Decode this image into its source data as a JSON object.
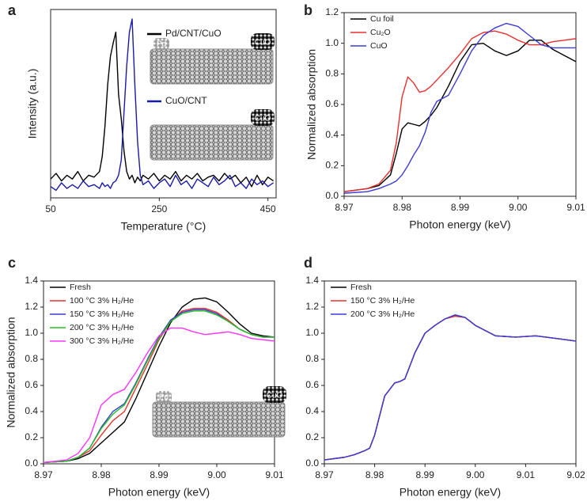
{
  "chart_data": [
    {
      "type": "line",
      "panel": "a",
      "xlabel": "Temperature (°C)",
      "ylabel": "Intensity (a.u.)",
      "x": [
        50,
        60,
        70,
        80,
        90,
        100,
        110,
        120,
        130,
        140,
        145,
        150,
        155,
        160,
        165,
        170,
        175,
        180,
        185,
        190,
        195,
        200,
        205,
        210,
        215,
        220,
        230,
        240,
        250,
        260,
        270,
        280,
        290,
        300,
        310,
        320,
        330,
        340,
        350,
        360,
        370,
        380,
        390,
        400,
        410,
        420,
        430,
        440,
        450,
        460
      ],
      "series": [
        {
          "name": "Pd/CNT/CuO",
          "color": "#000000",
          "values": [
            0.1,
            0.13,
            0.09,
            0.12,
            0.1,
            0.14,
            0.09,
            0.12,
            0.11,
            0.14,
            0.22,
            0.38,
            0.6,
            0.75,
            0.82,
            0.88,
            0.55,
            0.42,
            0.25,
            0.14,
            0.1,
            0.12,
            0.08,
            0.11,
            0.09,
            0.12,
            0.1,
            0.13,
            0.09,
            0.12,
            0.1,
            0.14,
            0.09,
            0.12,
            0.1,
            0.13,
            0.09,
            0.11,
            0.12,
            0.09,
            0.13,
            0.1,
            0.12,
            0.08,
            0.11,
            0.06,
            0.12,
            0.07,
            0.11,
            0.09
          ]
        },
        {
          "name": "CuO/CNT",
          "color": "#1a1aa8",
          "values": [
            0.06,
            0.04,
            0.08,
            0.05,
            0.07,
            0.05,
            0.09,
            0.06,
            0.07,
            0.05,
            0.08,
            0.06,
            0.07,
            0.05,
            0.08,
            0.09,
            0.12,
            0.2,
            0.45,
            0.7,
            0.88,
            0.95,
            0.6,
            0.3,
            0.12,
            0.07,
            0.09,
            0.05,
            0.08,
            0.1,
            0.06,
            0.12,
            0.07,
            0.09,
            0.05,
            0.1,
            0.08,
            0.06,
            0.11,
            0.07,
            0.09,
            0.12,
            0.06,
            0.08,
            0.05,
            0.1,
            0.07,
            0.09,
            0.06,
            0.08
          ]
        }
      ],
      "xlim": [
        50,
        465
      ],
      "ylim": [
        0,
        1
      ],
      "xticks": [
        50,
        250,
        450
      ],
      "legend": "center right",
      "annotations": [
        "Pd",
        "CuO",
        "CuO"
      ]
    },
    {
      "type": "line",
      "panel": "b",
      "xlabel": "Photon energy (keV)",
      "ylabel": "Normalized absorption",
      "x": [
        8.97,
        8.974,
        8.976,
        8.978,
        8.979,
        8.98,
        8.981,
        8.982,
        8.983,
        8.984,
        8.985,
        8.986,
        8.988,
        8.99,
        8.992,
        8.994,
        8.996,
        8.998,
        9.0,
        9.002,
        9.004,
        9.006,
        9.008,
        9.01
      ],
      "series": [
        {
          "name": "Cu foil",
          "color": "#000000",
          "values": [
            0.03,
            0.05,
            0.07,
            0.14,
            0.28,
            0.44,
            0.48,
            0.47,
            0.46,
            0.49,
            0.53,
            0.58,
            0.72,
            0.88,
            0.99,
            1.0,
            0.95,
            0.92,
            0.95,
            1.02,
            1.02,
            0.96,
            0.92,
            0.88
          ]
        },
        {
          "name": "Cu₂O",
          "color": "#e8312f",
          "values": [
            0.03,
            0.05,
            0.08,
            0.17,
            0.35,
            0.65,
            0.78,
            0.74,
            0.68,
            0.69,
            0.72,
            0.76,
            0.84,
            0.93,
            1.03,
            1.07,
            1.08,
            1.06,
            1.02,
            0.99,
            0.99,
            1.01,
            1.02,
            1.03
          ]
        },
        {
          "name": "CuO",
          "color": "#3b3bd6",
          "values": [
            0.02,
            0.03,
            0.05,
            0.08,
            0.1,
            0.14,
            0.2,
            0.27,
            0.33,
            0.42,
            0.55,
            0.62,
            0.66,
            0.8,
            0.95,
            1.05,
            1.1,
            1.13,
            1.11,
            1.05,
            0.99,
            0.97,
            0.97,
            0.97
          ]
        }
      ],
      "xlim": [
        8.97,
        9.01
      ],
      "ylim": [
        0,
        1.2
      ],
      "xticks": [
        8.97,
        8.98,
        8.99,
        {
          "value": 9,
          "label": "9.00"
        },
        9.01
      ],
      "yticks": [
        {
          "value": 0,
          "label": "0.0"
        },
        0.2,
        0.4,
        0.6,
        0.8,
        {
          "value": 1,
          "label": "1.0"
        },
        1.2
      ],
      "legend": "upper left"
    },
    {
      "type": "line",
      "panel": "c",
      "xlabel": "Photon energy (keV)",
      "ylabel": "Normalized absorption",
      "x": [
        8.97,
        8.974,
        8.976,
        8.978,
        8.98,
        8.982,
        8.984,
        8.986,
        8.988,
        8.99,
        8.992,
        8.994,
        8.996,
        8.998,
        9.0,
        9.002,
        9.004,
        9.006,
        9.008,
        9.01
      ],
      "series": [
        {
          "name": "Fresh",
          "color": "#000000",
          "values": [
            0.01,
            0.02,
            0.04,
            0.08,
            0.16,
            0.24,
            0.32,
            0.5,
            0.7,
            0.9,
            1.08,
            1.2,
            1.26,
            1.27,
            1.24,
            1.16,
            1.07,
            1.0,
            0.98,
            0.97
          ]
        },
        {
          "name": "100 °C 3% H₂/He",
          "color": "#e8312f",
          "values": [
            0.01,
            0.02,
            0.05,
            0.1,
            0.22,
            0.33,
            0.4,
            0.58,
            0.76,
            0.95,
            1.09,
            1.17,
            1.19,
            1.19,
            1.16,
            1.1,
            1.03,
            0.99,
            0.97,
            0.97
          ]
        },
        {
          "name": "150 °C 3% H₂/He",
          "color": "#3b3bd6",
          "values": [
            0.01,
            0.02,
            0.05,
            0.12,
            0.28,
            0.4,
            0.46,
            0.62,
            0.8,
            0.97,
            1.1,
            1.16,
            1.18,
            1.18,
            1.15,
            1.09,
            1.03,
            0.99,
            0.97,
            0.97
          ]
        },
        {
          "name": "200 °C 3% H₂/He",
          "color": "#22c022",
          "values": [
            0.01,
            0.02,
            0.05,
            0.12,
            0.27,
            0.38,
            0.45,
            0.61,
            0.79,
            0.96,
            1.09,
            1.15,
            1.17,
            1.17,
            1.14,
            1.09,
            1.03,
            0.99,
            0.97,
            0.97
          ]
        },
        {
          "name": "300 °C 3% H₂/He",
          "color": "#ff33ff",
          "values": [
            0.01,
            0.03,
            0.08,
            0.2,
            0.45,
            0.53,
            0.57,
            0.7,
            0.85,
            0.98,
            1.04,
            1.04,
            1.01,
            0.99,
            1.0,
            1.01,
            0.99,
            0.96,
            0.95,
            0.94
          ]
        }
      ],
      "xlim": [
        8.97,
        9.01
      ],
      "ylim": [
        0,
        1.4
      ],
      "xticks": [
        8.97,
        8.98,
        8.99,
        {
          "value": 9,
          "label": "9.00"
        },
        9.01
      ],
      "yticks": [
        {
          "value": 0,
          "label": "0.0"
        },
        0.2,
        0.4,
        0.6,
        0.8,
        {
          "value": 1,
          "label": "1.0"
        },
        1.2,
        1.4
      ],
      "legend": "upper left",
      "annotations": [
        "Pd",
        "CuO"
      ]
    },
    {
      "type": "line",
      "panel": "d",
      "xlabel": "Photon energy (keV)",
      "x": [
        8.97,
        8.974,
        8.976,
        8.978,
        8.979,
        8.98,
        8.982,
        8.984,
        8.985,
        8.986,
        8.987,
        8.988,
        8.99,
        8.992,
        8.994,
        8.996,
        8.998,
        9.0,
        9.004,
        9.008,
        9.012,
        9.016,
        9.02
      ],
      "series": [
        {
          "name": "Fresh",
          "color": "#000000",
          "values": [
            0.03,
            0.05,
            0.07,
            0.1,
            0.12,
            0.22,
            0.52,
            0.62,
            0.63,
            0.65,
            0.75,
            0.85,
            1.0,
            1.06,
            1.11,
            1.14,
            1.12,
            1.06,
            0.98,
            0.97,
            0.98,
            0.96,
            0.94
          ]
        },
        {
          "name": "150 °C 3% H₂/He",
          "color": "#e8312f",
          "values": [
            0.03,
            0.05,
            0.07,
            0.1,
            0.12,
            0.22,
            0.52,
            0.62,
            0.63,
            0.65,
            0.75,
            0.85,
            1.0,
            1.06,
            1.11,
            1.13,
            1.12,
            1.06,
            0.98,
            0.97,
            0.98,
            0.96,
            0.94
          ]
        },
        {
          "name": "200 °C 3% H₂/He",
          "color": "#3b3bd6",
          "values": [
            0.03,
            0.05,
            0.07,
            0.1,
            0.12,
            0.22,
            0.52,
            0.62,
            0.63,
            0.65,
            0.75,
            0.85,
            1.0,
            1.06,
            1.11,
            1.14,
            1.12,
            1.06,
            0.98,
            0.97,
            0.98,
            0.96,
            0.94
          ]
        }
      ],
      "xlim": [
        8.97,
        9.02
      ],
      "ylim": [
        0,
        1.4
      ],
      "xticks": [
        8.97,
        8.98,
        8.99,
        {
          "value": 9,
          "label": "9.00"
        },
        9.01,
        9.02
      ],
      "yticks": [
        {
          "value": 0,
          "label": "0.0"
        },
        0.2,
        0.4,
        0.6,
        0.8,
        {
          "value": 1,
          "label": "1.0"
        },
        1.2,
        1.4
      ],
      "legend": "upper left"
    }
  ]
}
